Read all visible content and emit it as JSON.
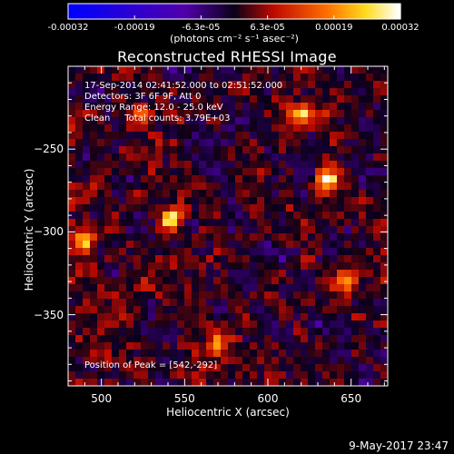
{
  "chart_data": {
    "type": "heatmap",
    "title": "Reconstructed RHESSI Image",
    "xlabel": "Heliocentric X (arcsec)",
    "ylabel": "Heliocentric Y (arcsec)",
    "xlim": [
      480,
      672
    ],
    "ylim": [
      -393,
      -200
    ],
    "x_ticks": [
      "500",
      "550",
      "600",
      "650"
    ],
    "y_ticks": [
      "-250",
      "-300",
      "-350"
    ],
    "colorbar": {
      "ticks": [
        "-0.00032",
        "-0.00019",
        "-6.3e-05",
        "6.3e-05",
        "0.00019",
        "0.00032"
      ],
      "range": [
        -0.00032,
        0.00032
      ],
      "units": "(photons cm⁻² s⁻¹ asec⁻²)"
    },
    "info_lines": [
      "17-Sep-2014 02:41:52.000 to 02:51:52.000",
      "Detectors: 3F 6F 9F, Att 0",
      "Energy Range: 12.0 - 25.0 keV",
      "Clean     Total counts: 3.79E+03"
    ],
    "peak_text": "Position of Peak = [542,-292]",
    "peak_position": [
      542,
      -292
    ],
    "bright_sources": [
      {
        "x": 542,
        "y": -292,
        "value": 0.00032
      },
      {
        "x": 636,
        "y": -268,
        "value": 0.00029
      },
      {
        "x": 489,
        "y": -306,
        "value": 0.00022
      },
      {
        "x": 620,
        "y": -228,
        "value": 0.0002
      },
      {
        "x": 525,
        "y": -230,
        "value": 0.00018
      },
      {
        "x": 648,
        "y": -330,
        "value": 0.00018
      },
      {
        "x": 570,
        "y": -368,
        "value": 0.00017
      }
    ]
  },
  "footer": {
    "date": "9-May-2017 23:47"
  }
}
